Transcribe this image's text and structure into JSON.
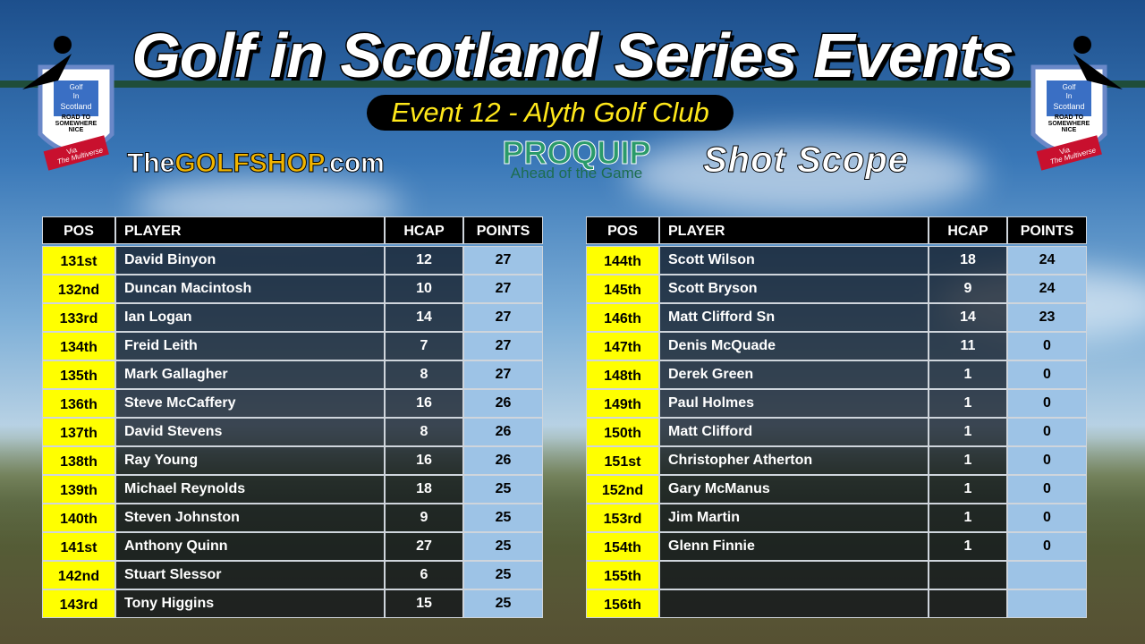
{
  "header": {
    "title": "Golf in Scotland Series Events",
    "subtitle": "Event 12 - Alyth Golf Club"
  },
  "logo": {
    "line1": "Golf",
    "line2": "In",
    "line3": "Scotland",
    "motto": "Road to Somewhere Nice",
    "via": "Via",
    "ribbon": "The Multiverse"
  },
  "sponsors": {
    "golfshop_the": "The",
    "golfshop_name": "GOLFSHOP",
    "golfshop_tld": ".com",
    "proquip": "PROQUIP",
    "proquip_tagline": "Ahead of the Game",
    "shotscope": "Shot Scope"
  },
  "tables": [
    {
      "columns": [
        "POS",
        "PLAYER",
        "HCAP",
        "POINTS"
      ],
      "rows": [
        [
          "131st",
          "David Binyon",
          12,
          27
        ],
        [
          "132nd",
          "Duncan Macintosh",
          10,
          27
        ],
        [
          "133rd",
          "Ian Logan",
          14,
          27
        ],
        [
          "134th",
          "Freid Leith",
          7,
          27
        ],
        [
          "135th",
          "Mark Gallagher",
          8,
          27
        ],
        [
          "136th",
          "Steve McCaffery",
          16,
          26
        ],
        [
          "137th",
          "David Stevens",
          8,
          26
        ],
        [
          "138th",
          "Ray  Young",
          16,
          26
        ],
        [
          "139th",
          "Michael Reynolds",
          18,
          25
        ],
        [
          "140th",
          "Steven Johnston",
          9,
          25
        ],
        [
          "141st",
          "Anthony Quinn",
          27,
          25
        ],
        [
          "142nd",
          "Stuart Slessor",
          6,
          25
        ],
        [
          "143rd",
          "Tony Higgins",
          15,
          25
        ]
      ]
    },
    {
      "columns": [
        "POS",
        "PLAYER",
        "HCAP",
        "POINTS"
      ],
      "rows": [
        [
          "144th",
          "Scott Wilson",
          18,
          24
        ],
        [
          "145th",
          "Scott Bryson",
          9,
          24
        ],
        [
          "146th",
          "Matt Clifford Sn",
          14,
          23
        ],
        [
          "147th",
          "Denis McQuade",
          11,
          0
        ],
        [
          "148th",
          "Derek Green",
          1,
          0
        ],
        [
          "149th",
          "Paul Holmes",
          1,
          0
        ],
        [
          "150th",
          "Matt Clifford",
          1,
          0
        ],
        [
          "151st",
          "Christopher Atherton",
          1,
          0
        ],
        [
          "152nd",
          "Gary McManus",
          1,
          0
        ],
        [
          "153rd",
          "Jim Martin",
          1,
          0
        ],
        [
          "154th",
          "Glenn Finnie",
          1,
          0
        ],
        [
          "155th"
        ],
        [
          "156th"
        ]
      ]
    }
  ]
}
